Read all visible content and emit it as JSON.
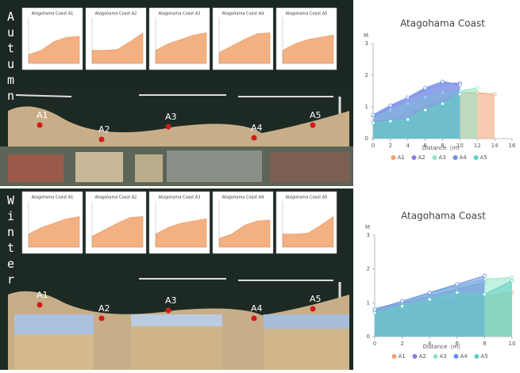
{
  "panels": [
    {
      "season": "Autumn",
      "small_chart_titles": [
        "Atagohama Coast A1",
        "Atagohama Coast A2",
        "Atagohama Coast A3",
        "Atagohama Coast A4",
        "Atagohama Coast A5"
      ],
      "sites": [
        "A1",
        "A2",
        "A3",
        "A4",
        "A5"
      ]
    },
    {
      "season": "Winter",
      "small_chart_titles": [
        "Atagohama Coast A1",
        "Atagohama Coast A2",
        "Atagohama Coast A3",
        "Atagohama Coast A4",
        "Atagohama Coast A5"
      ],
      "sites": [
        "A1",
        "A2",
        "A3",
        "A4",
        "A5"
      ]
    }
  ],
  "chart_data": [
    {
      "type": "area",
      "title": "Atagohama Coast",
      "y_label": "M",
      "x_label": "Distance（m）",
      "xlim": [
        0,
        16
      ],
      "xticks": [
        0,
        2,
        4,
        6,
        8,
        10,
        12,
        14,
        16
      ],
      "ylim": [
        0,
        3
      ],
      "yticks": [
        0,
        1,
        2,
        3
      ],
      "series": [
        {
          "name": "A1",
          "color": "#f0a070",
          "x": [
            0,
            2,
            4,
            6,
            8,
            10,
            12,
            14
          ],
          "values": [
            0.55,
            0.6,
            0.8,
            1.0,
            1.2,
            1.45,
            1.45,
            1.4
          ]
        },
        {
          "name": "A2",
          "color": "#8a7fe0",
          "x": [
            0,
            2,
            4,
            6,
            8,
            10
          ],
          "values": [
            0.7,
            1.0,
            1.25,
            1.55,
            1.75,
            1.75
          ]
        },
        {
          "name": "A3",
          "color": "#8fe6c4",
          "x": [
            0,
            2,
            4,
            6,
            8,
            10,
            12
          ],
          "values": [
            0.65,
            0.9,
            1.1,
            1.3,
            1.45,
            1.5,
            1.6
          ]
        },
        {
          "name": "A4",
          "color": "#6b8fe8",
          "x": [
            0,
            2,
            4,
            6,
            8,
            10
          ],
          "values": [
            0.75,
            1.05,
            1.3,
            1.6,
            1.8,
            1.7
          ]
        },
        {
          "name": "A5",
          "color": "#5fd0c4",
          "x": [
            0,
            2,
            4,
            6,
            8,
            10
          ],
          "values": [
            0.5,
            0.55,
            0.6,
            0.9,
            1.1,
            1.4
          ]
        }
      ]
    },
    {
      "type": "area",
      "title": "Atagohama Coast",
      "y_label": "M",
      "x_label": "Distance（m）",
      "xlim": [
        0,
        10
      ],
      "xticks": [
        0,
        2,
        4,
        6,
        8,
        10
      ],
      "ylim": [
        0,
        3
      ],
      "yticks": [
        0,
        1,
        2,
        3
      ],
      "series": [
        {
          "name": "A1",
          "color": "#f0a070",
          "x": [
            0,
            2,
            4,
            6,
            8,
            10
          ],
          "values": [
            0.75,
            0.85,
            1.0,
            1.1,
            1.2,
            1.3
          ]
        },
        {
          "name": "A2",
          "color": "#8a7fe0",
          "x": [
            0,
            2,
            4,
            6,
            8
          ],
          "values": [
            0.8,
            1.0,
            1.2,
            1.4,
            1.6
          ]
        },
        {
          "name": "A3",
          "color": "#8fe6c4",
          "x": [
            0,
            2,
            4,
            6,
            8,
            10
          ],
          "values": [
            0.85,
            1.0,
            1.3,
            1.5,
            1.7,
            1.75
          ]
        },
        {
          "name": "A4",
          "color": "#6b8fe8",
          "x": [
            0,
            2,
            4,
            6,
            8
          ],
          "values": [
            0.8,
            1.05,
            1.3,
            1.55,
            1.8
          ]
        },
        {
          "name": "A5",
          "color": "#5fd0c4",
          "x": [
            0,
            2,
            4,
            6,
            8,
            10
          ],
          "values": [
            0.7,
            0.9,
            1.1,
            1.3,
            1.25,
            1.65
          ]
        }
      ]
    }
  ]
}
